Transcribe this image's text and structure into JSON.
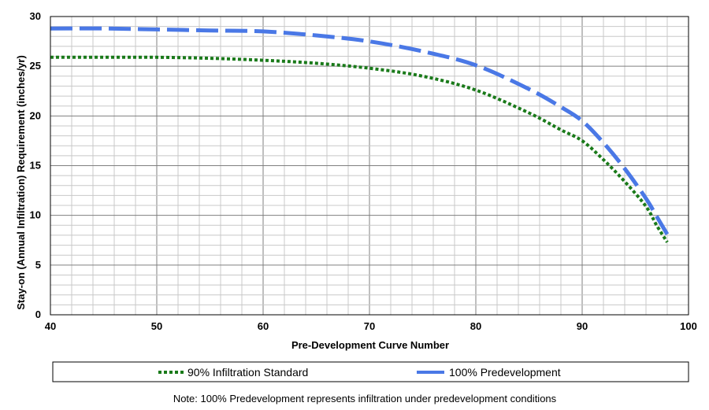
{
  "chart_data": {
    "type": "line",
    "title": "",
    "xlabel": "Pre-Development Curve Number",
    "ylabel": "Stay-on (Annual Infiltration) Requirement (inches/yr)",
    "xlim": [
      40,
      100
    ],
    "ylim": [
      0,
      30
    ],
    "x_major_ticks": [
      40,
      50,
      60,
      70,
      80,
      90,
      100
    ],
    "y_major_ticks": [
      0,
      5,
      10,
      15,
      20,
      25,
      30
    ],
    "grid": "major and minor",
    "legend_placement": "bottom",
    "series": [
      {
        "name": "90% Infiltration Standard",
        "color": "#1a7a1a",
        "line_style": "dotted",
        "x": [
          40,
          45,
          50,
          55,
          60,
          65,
          70,
          75,
          80,
          85,
          88,
          90,
          92,
          94,
          96,
          97,
          98
        ],
        "y": [
          25.9,
          25.9,
          25.9,
          25.8,
          25.6,
          25.3,
          24.8,
          24.0,
          22.6,
          20.3,
          18.6,
          17.5,
          15.6,
          13.4,
          10.9,
          9.0,
          7.3
        ]
      },
      {
        "name": "100% Predevelopment",
        "color": "#4a78e6",
        "line_style": "dashed",
        "x": [
          40,
          45,
          50,
          55,
          60,
          65,
          70,
          75,
          80,
          85,
          88,
          90,
          92,
          94,
          96,
          97,
          98
        ],
        "y": [
          28.8,
          28.8,
          28.7,
          28.6,
          28.5,
          28.1,
          27.5,
          26.5,
          25.1,
          22.7,
          20.9,
          19.5,
          17.3,
          14.7,
          11.7,
          9.9,
          8.1
        ]
      }
    ],
    "note": "Note: 100% Predevelopment represents infiltration under predevelopment conditions"
  }
}
